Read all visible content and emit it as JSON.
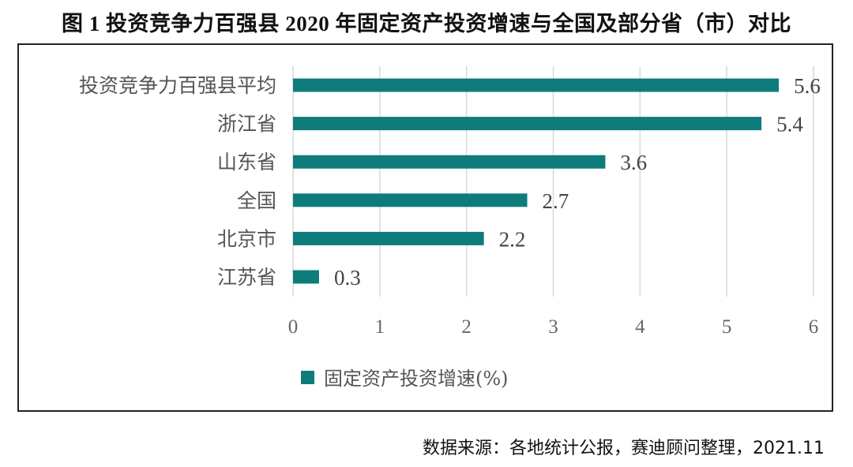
{
  "title": "图 1 投资竞争力百强县 2020 年固定资产投资增速与全国及部分省（市）对比",
  "source": "数据来源：各地统计公报，赛迪顾问整理，2021.11",
  "chart_data": {
    "type": "bar",
    "orientation": "horizontal",
    "title": "图 1 投资竞争力百强县 2020 年固定资产投资增速与全国及部分省（市）对比",
    "categories": [
      "投资竞争力百强县平均",
      "浙江省",
      "山东省",
      "全国",
      "北京市",
      "江苏省"
    ],
    "series": [
      {
        "name": "固定资产投资增速(%)",
        "values": [
          5.6,
          5.4,
          3.6,
          2.7,
          2.2,
          0.3
        ],
        "color": "#0e7c7b"
      }
    ],
    "value_labels": [
      "5.6",
      "5.4",
      "3.6",
      "2.7",
      "2.2",
      "0.3"
    ],
    "xlim": [
      0,
      6
    ],
    "xticks": [
      0,
      1,
      2,
      3,
      4,
      5,
      6
    ],
    "xtick_labels": [
      "0",
      "1",
      "2",
      "3",
      "4",
      "5",
      "6"
    ],
    "xlabel": "",
    "ylabel": "",
    "grid": "vertical",
    "legend": {
      "position": "bottom-left",
      "entries": [
        "固定资产投资增速(%)"
      ]
    }
  }
}
